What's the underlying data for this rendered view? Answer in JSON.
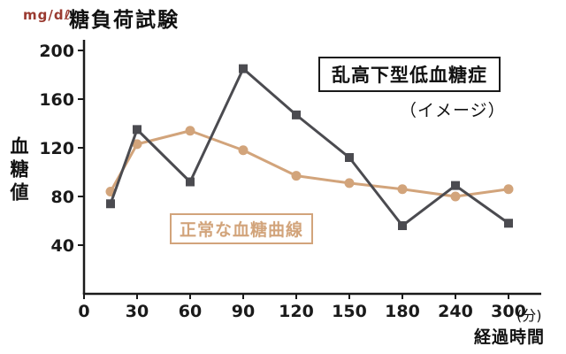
{
  "chart_data": {
    "type": "line",
    "title": "糖負荷試験",
    "unit_label": "mg/dℓ",
    "ylabel": "血糖値",
    "xlabel": "経過時間",
    "x_axis_unit": "(分)",
    "ylim": [
      0,
      200
    ],
    "y_ticks": [
      200,
      160,
      120,
      80,
      40
    ],
    "x_ticks": [
      0,
      30,
      60,
      90,
      120,
      150,
      180,
      240,
      300
    ],
    "x_minutes": [
      15,
      30,
      60,
      90,
      120,
      150,
      180,
      240,
      300
    ],
    "grid": false,
    "series": [
      {
        "name": "乱高下型低血糖症",
        "color": "#4b4b50",
        "marker": "square",
        "values": [
          74,
          135,
          92,
          185,
          147,
          112,
          56,
          89,
          58
        ]
      },
      {
        "name": "正常な血糖曲線",
        "color": "#d2a47b",
        "marker": "circle",
        "values": [
          84,
          123,
          134,
          118,
          97,
          91,
          86,
          80,
          86
        ]
      }
    ],
    "annotations": {
      "boxed_label": "乱高下型低血糖症",
      "image_note": "（イメージ）",
      "normal_label": "正常な血糖曲線"
    },
    "colors": {
      "unit_label": "#9a3a30",
      "axis": "#1a1a1a"
    }
  }
}
